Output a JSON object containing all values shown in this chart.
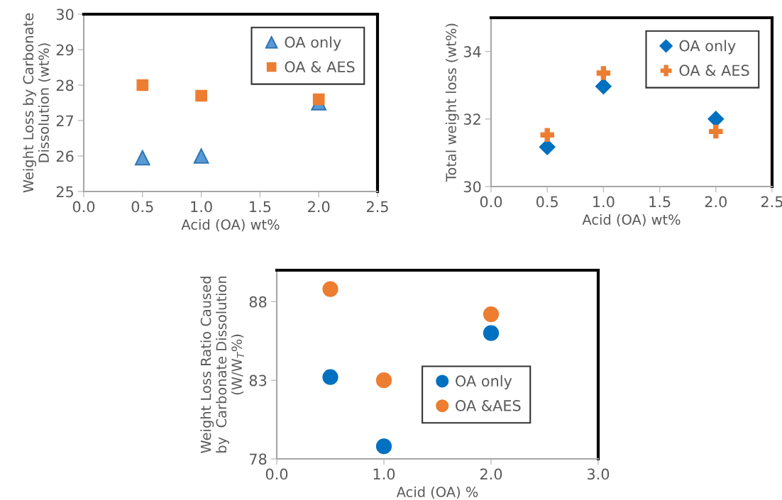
{
  "chart_data": [
    {
      "type": "scatter",
      "xlabel": "Acid (OA) wt%",
      "ylabel": "Weight Loss by Carbonate\nDissolution (wt%)",
      "x": [
        0.5,
        1.0,
        2.0
      ],
      "xlim": [
        0,
        2.5
      ],
      "ylim": [
        25,
        30
      ],
      "xticks": [
        {
          "value": 0,
          "label": "0.0"
        },
        {
          "value": 0.5,
          "label": "0.5"
        },
        {
          "value": 1,
          "label": "1.0"
        },
        {
          "value": 1.5,
          "label": "1.5"
        },
        {
          "value": 2,
          "label": "2.0"
        },
        {
          "value": 2.5,
          "label": "2.5"
        }
      ],
      "yticks": [
        25,
        26,
        27,
        28,
        29,
        30
      ],
      "legend": "top right",
      "grid": false,
      "series": [
        {
          "name": "OA only",
          "color": "#5b9bd5",
          "marker": "triangle",
          "values": [
            25.95,
            26.0,
            27.5
          ]
        },
        {
          "name": "OA & AES",
          "color": "#ed7d31",
          "marker": "square",
          "values": [
            28.0,
            27.7,
            27.6
          ]
        }
      ]
    },
    {
      "type": "scatter",
      "xlabel": "Acid (OA) wt%",
      "ylabel": "Total weight loss (wt%)",
      "x": [
        0.5,
        1.0,
        2.0
      ],
      "xlim": [
        0,
        2.5
      ],
      "ylim": [
        30,
        35
      ],
      "xticks": [
        {
          "value": 0,
          "label": "0.0"
        },
        {
          "value": 0.5,
          "label": "0.5"
        },
        {
          "value": 1,
          "label": "1.0"
        },
        {
          "value": 1.5,
          "label": "1.5"
        },
        {
          "value": 2,
          "label": "2.0"
        },
        {
          "value": 2.5,
          "label": "2.5"
        }
      ],
      "yticks": [
        30,
        32,
        34
      ],
      "legend": "top right",
      "grid": false,
      "series": [
        {
          "name": "OA only",
          "color": "#0070c0",
          "marker": "diamond",
          "values": [
            31.17,
            32.97,
            32.0
          ]
        },
        {
          "name": "OA & AES",
          "color": "#ed7d31",
          "marker": "cross",
          "values": [
            31.53,
            33.36,
            31.63
          ]
        }
      ]
    },
    {
      "type": "scatter",
      "xlabel": "Acid (OA) %",
      "ylabel": "Weight Loss Ratio Caused\nby  Carbonate Dissolution\n(W/W$_{T}$%)",
      "x": [
        0.5,
        1.0,
        2.0
      ],
      "xlim": [
        0,
        3
      ],
      "ylim": [
        78,
        90
      ],
      "xticks": [
        {
          "value": 0,
          "label": "0.0"
        },
        {
          "value": 1,
          "label": "1.0"
        },
        {
          "value": 2,
          "label": "2.0"
        },
        {
          "value": 3,
          "label": "3.0"
        }
      ],
      "yticks": [
        78,
        83,
        88
      ],
      "legend": "bottom right",
      "grid": false,
      "series": [
        {
          "name": "OA only",
          "color": "#0070c0",
          "marker": "circle",
          "values": [
            83.2,
            78.8,
            86.0
          ]
        },
        {
          "name": "OA &AES",
          "color": "#ed7d31",
          "marker": "circle",
          "values": [
            88.8,
            83.0,
            87.2
          ]
        }
      ]
    }
  ]
}
